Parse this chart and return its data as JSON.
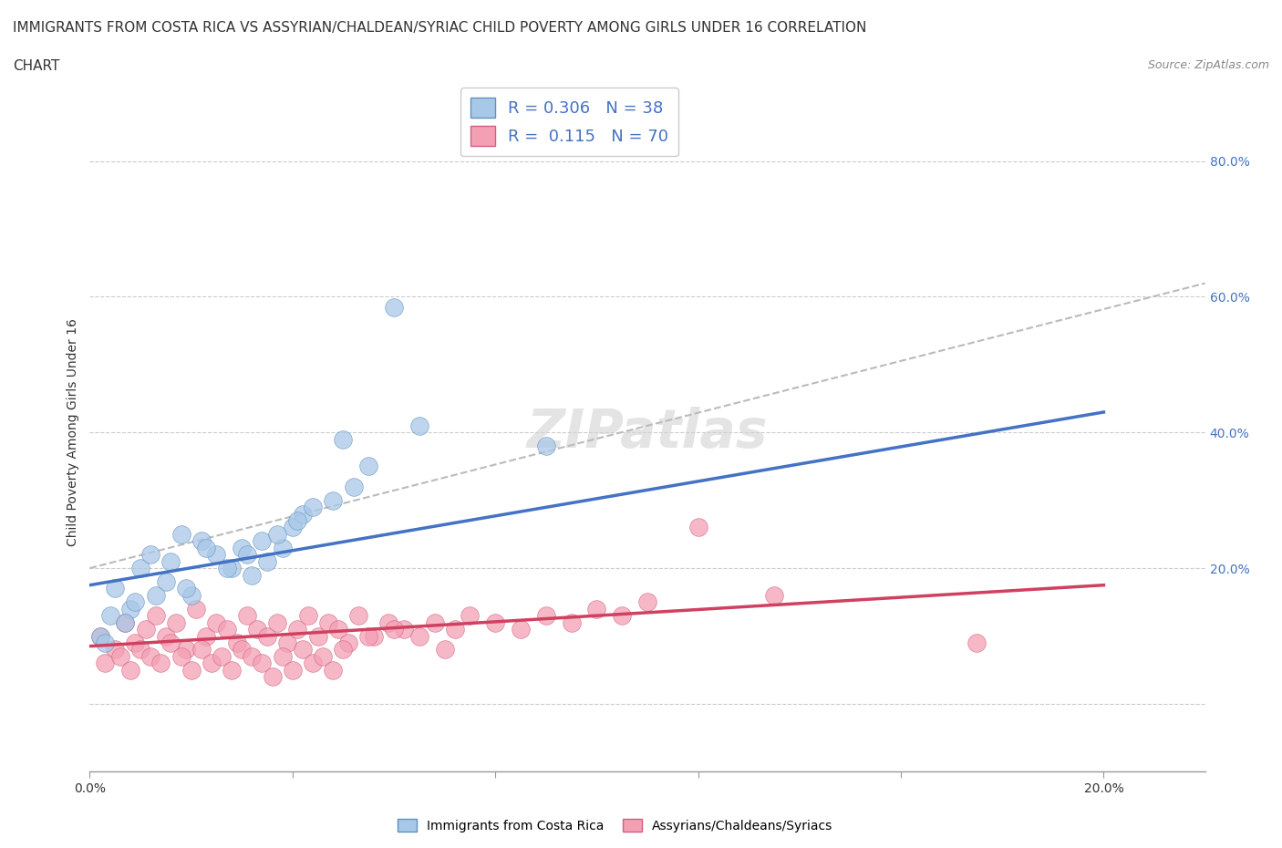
{
  "title_line1": "IMMIGRANTS FROM COSTA RICA VS ASSYRIAN/CHALDEAN/SYRIAC CHILD POVERTY AMONG GIRLS UNDER 16 CORRELATION",
  "title_line2": "CHART",
  "source": "Source: ZipAtlas.com",
  "ylabel": "Child Poverty Among Girls Under 16",
  "xlim": [
    0.0,
    0.22
  ],
  "ylim": [
    -0.1,
    0.9
  ],
  "xticks": [
    0.0,
    0.04,
    0.08,
    0.12,
    0.16,
    0.2
  ],
  "xtick_labels": [
    "0.0%",
    "",
    "",
    "",
    "",
    "20.0%"
  ],
  "ytick_labels_right": [
    "80.0%",
    "60.0%",
    "40.0%",
    "20.0%"
  ],
  "ytick_vals_right": [
    0.8,
    0.6,
    0.4,
    0.2
  ],
  "gridline_vals": [
    0.8,
    0.6,
    0.4,
    0.2,
    0.0
  ],
  "blue_color": "#A8C8E8",
  "pink_color": "#F4A0B4",
  "blue_edge_color": "#6090C0",
  "pink_edge_color": "#D06080",
  "blue_line_color": "#4472C4",
  "pink_line_color": "#D04060",
  "dashed_line_color": "#BBBBBB",
  "legend_R1": "0.306",
  "legend_N1": "38",
  "legend_R2": "0.115",
  "legend_N2": "70",
  "blue_scatter_x": [
    0.005,
    0.01,
    0.008,
    0.012,
    0.015,
    0.018,
    0.02,
    0.022,
    0.025,
    0.028,
    0.03,
    0.032,
    0.035,
    0.038,
    0.04,
    0.042,
    0.05,
    0.055,
    0.06,
    0.065,
    0.002,
    0.004,
    0.007,
    0.009,
    0.013,
    0.016,
    0.019,
    0.023,
    0.027,
    0.031,
    0.034,
    0.037,
    0.041,
    0.048,
    0.052,
    0.09,
    0.003,
    0.044
  ],
  "blue_scatter_y": [
    0.17,
    0.2,
    0.14,
    0.22,
    0.18,
    0.25,
    0.16,
    0.24,
    0.22,
    0.2,
    0.23,
    0.19,
    0.21,
    0.23,
    0.26,
    0.28,
    0.39,
    0.35,
    0.585,
    0.41,
    0.1,
    0.13,
    0.12,
    0.15,
    0.16,
    0.21,
    0.17,
    0.23,
    0.2,
    0.22,
    0.24,
    0.25,
    0.27,
    0.3,
    0.32,
    0.38,
    0.09,
    0.29
  ],
  "pink_scatter_x": [
    0.002,
    0.005,
    0.007,
    0.009,
    0.011,
    0.013,
    0.015,
    0.017,
    0.019,
    0.021,
    0.023,
    0.025,
    0.027,
    0.029,
    0.031,
    0.033,
    0.035,
    0.037,
    0.039,
    0.041,
    0.043,
    0.045,
    0.047,
    0.049,
    0.051,
    0.053,
    0.056,
    0.059,
    0.062,
    0.065,
    0.068,
    0.072,
    0.075,
    0.08,
    0.085,
    0.09,
    0.095,
    0.1,
    0.105,
    0.11,
    0.003,
    0.006,
    0.008,
    0.01,
    0.012,
    0.014,
    0.016,
    0.018,
    0.02,
    0.022,
    0.024,
    0.026,
    0.028,
    0.03,
    0.032,
    0.034,
    0.036,
    0.038,
    0.04,
    0.042,
    0.044,
    0.046,
    0.048,
    0.05,
    0.055,
    0.06,
    0.07,
    0.12,
    0.135,
    0.175
  ],
  "pink_scatter_y": [
    0.1,
    0.08,
    0.12,
    0.09,
    0.11,
    0.13,
    0.1,
    0.12,
    0.08,
    0.14,
    0.1,
    0.12,
    0.11,
    0.09,
    0.13,
    0.11,
    0.1,
    0.12,
    0.09,
    0.11,
    0.13,
    0.1,
    0.12,
    0.11,
    0.09,
    0.13,
    0.1,
    0.12,
    0.11,
    0.1,
    0.12,
    0.11,
    0.13,
    0.12,
    0.11,
    0.13,
    0.12,
    0.14,
    0.13,
    0.15,
    0.06,
    0.07,
    0.05,
    0.08,
    0.07,
    0.06,
    0.09,
    0.07,
    0.05,
    0.08,
    0.06,
    0.07,
    0.05,
    0.08,
    0.07,
    0.06,
    0.04,
    0.07,
    0.05,
    0.08,
    0.06,
    0.07,
    0.05,
    0.08,
    0.1,
    0.11,
    0.08,
    0.26,
    0.16,
    0.09
  ],
  "watermark": "ZIPatlas",
  "background_color": "#FFFFFF"
}
